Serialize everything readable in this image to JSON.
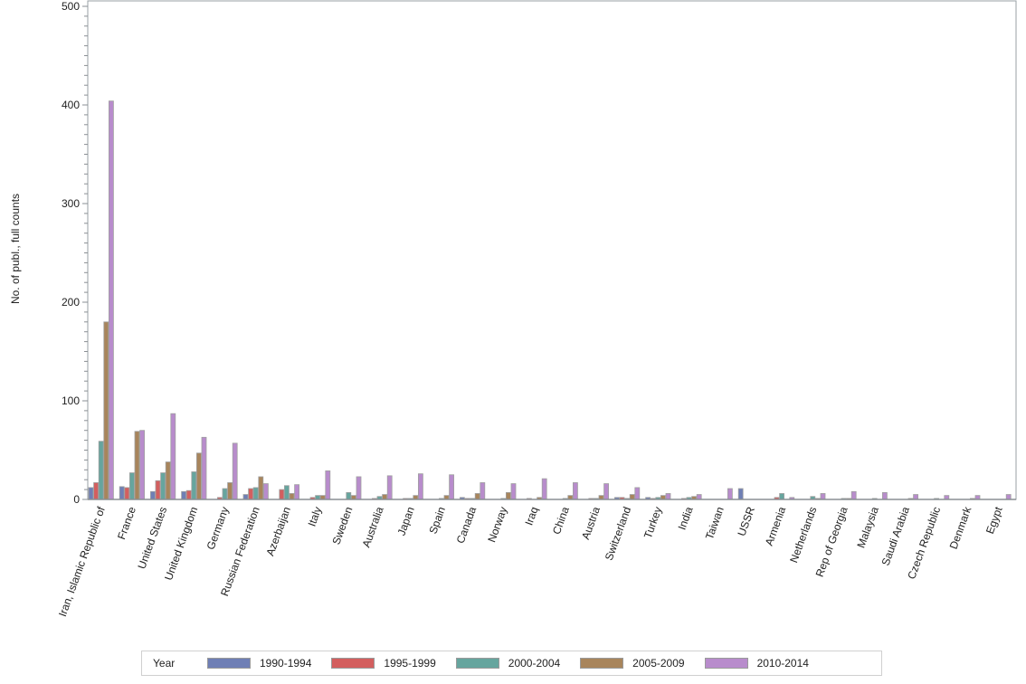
{
  "chart_data": {
    "type": "bar",
    "title": "",
    "xlabel": "",
    "ylabel": "No. of publ., full counts",
    "ylim": [
      0,
      500
    ],
    "yticks": [
      100,
      200,
      300,
      400,
      500
    ],
    "grid": false,
    "legend_position": "bottom",
    "legend_title": "Year",
    "categories": [
      "Iran, Islamic Republic of",
      "France",
      "United States",
      "United Kingdom",
      "Germany",
      "Russian Federation",
      "Azerbaijan",
      "Italy",
      "Sweden",
      "Australia",
      "Japan",
      "Spain",
      "Canada",
      "Norway",
      "Iraq",
      "China",
      "Austria",
      "Switzerland",
      "Turkey",
      "India",
      "Taiwan",
      "USSR",
      "Armenia",
      "Netherlands",
      "Rep of Georgia",
      "Malaysia",
      "Saudi Arabia",
      "Czech Republic",
      "Denmark",
      "Egypt"
    ],
    "series": [
      {
        "name": "1990-1994",
        "color": "#6f7fb5",
        "values": [
          12,
          13,
          8,
          8,
          0,
          5,
          0,
          0,
          0,
          0,
          0,
          0,
          2,
          0,
          0,
          0,
          0,
          2,
          2,
          0,
          0,
          11,
          0,
          0,
          0,
          0,
          0,
          0,
          0,
          0
        ]
      },
      {
        "name": "1995-1999",
        "color": "#d35f5f",
        "values": [
          17,
          12,
          19,
          9,
          2,
          11,
          10,
          2,
          0,
          1,
          1,
          0,
          1,
          0,
          1,
          0,
          1,
          2,
          1,
          1,
          0,
          0,
          2,
          0,
          0,
          0,
          0,
          0,
          0,
          0
        ]
      },
      {
        "name": "2000-2004",
        "color": "#66a59e",
        "values": [
          59,
          27,
          27,
          28,
          11,
          12,
          14,
          4,
          7,
          3,
          1,
          1,
          1,
          1,
          0,
          1,
          1,
          1,
          2,
          2,
          0,
          0,
          6,
          3,
          1,
          1,
          0,
          1,
          0,
          0
        ]
      },
      {
        "name": "2005-2009",
        "color": "#a8855c",
        "values": [
          180,
          69,
          38,
          47,
          17,
          23,
          6,
          4,
          4,
          5,
          4,
          4,
          6,
          7,
          2,
          4,
          4,
          5,
          4,
          3,
          0,
          0,
          0,
          1,
          1,
          0,
          1,
          0,
          1,
          0
        ]
      },
      {
        "name": "2010-2014",
        "color": "#b88ccc",
        "values": [
          404,
          70,
          87,
          63,
          57,
          16,
          15,
          29,
          23,
          24,
          26,
          25,
          17,
          16,
          21,
          17,
          16,
          12,
          6,
          5,
          11,
          0,
          2,
          6,
          8,
          7,
          5,
          4,
          4,
          5
        ]
      }
    ]
  }
}
